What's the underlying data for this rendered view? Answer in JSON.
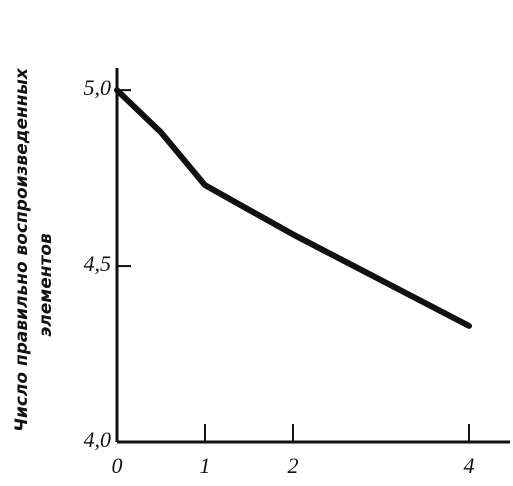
{
  "chart_data": {
    "type": "line",
    "ylabel": [
      "Число правильно воспроизведенных",
      "элементов"
    ],
    "x": [
      0,
      0.5,
      1,
      2,
      4
    ],
    "series": [
      {
        "color": "#111111",
        "values": [
          5.0,
          4.88,
          4.73,
          4.59,
          4.33
        ]
      }
    ],
    "xlim": [
      0,
      4.5
    ],
    "ylim": [
      4.0,
      5.08
    ],
    "xticks": [
      0,
      1,
      2,
      4
    ],
    "yticks": [
      {
        "value": 4.0,
        "label": "4,0"
      },
      {
        "value": 4.5,
        "label": "4,5"
      },
      {
        "value": 5.0,
        "label": "5,0"
      }
    ]
  }
}
